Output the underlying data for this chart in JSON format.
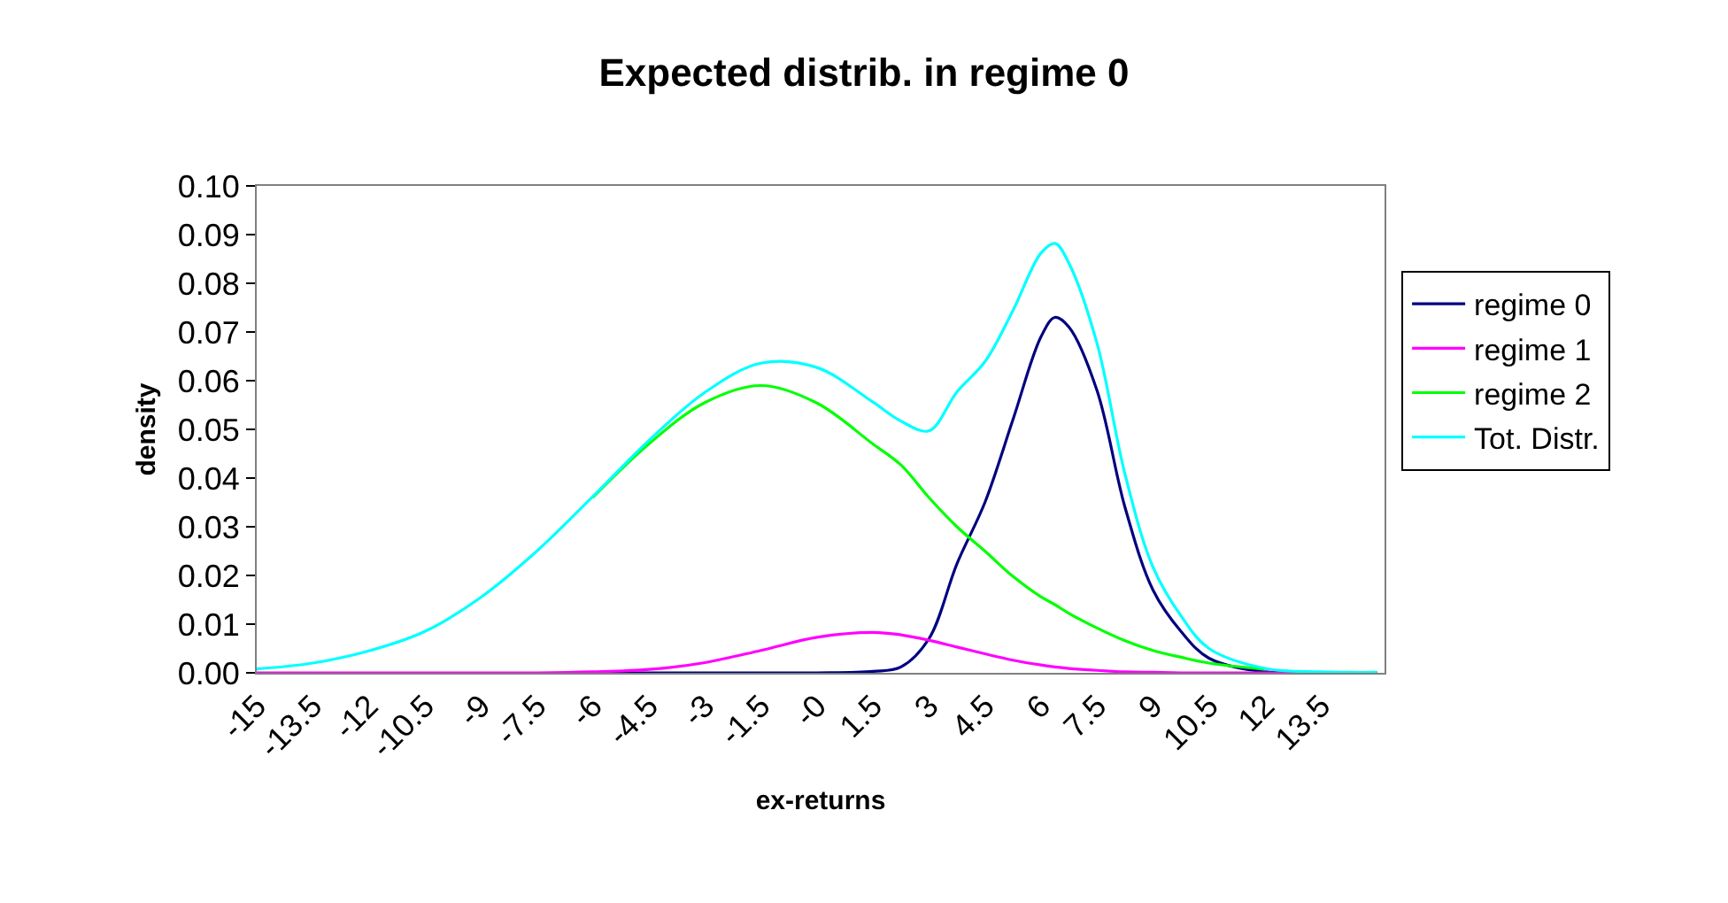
{
  "chart_data": {
    "type": "line",
    "title": "Expected distrib. in regime 0",
    "xlabel": "ex-returns",
    "ylabel": "density",
    "x": [
      -15,
      -13.5,
      -12,
      -10.5,
      -9,
      -7.5,
      -6,
      -4.5,
      -3,
      -1.5,
      0,
      1.5,
      2.25,
      3,
      3.75,
      4.5,
      5.25,
      6,
      6.375,
      6.75,
      7.5,
      8.25,
      9,
      9.75,
      10.5,
      12,
      13.5,
      15
    ],
    "series": [
      {
        "name": "regime 0",
        "color": "#000080",
        "values": [
          null,
          null,
          null,
          null,
          null,
          null,
          0,
          0,
          0,
          0,
          0,
          0.0003,
          0.0012,
          0.007,
          0.0224,
          0.035,
          0.052,
          0.069,
          0.073,
          0.071,
          0.058,
          0.034,
          0.017,
          0.0085,
          0.003,
          0.0002,
          0,
          0
        ]
      },
      {
        "name": "regime 1",
        "color": "#ff00ff",
        "values": [
          0,
          0,
          0,
          0,
          0,
          0,
          0.0002,
          0.0007,
          0.0021,
          0.0046,
          0.0073,
          0.0083,
          0.0078,
          0.0067,
          0.0053,
          0.0039,
          0.0026,
          0.0016,
          0.0012,
          0.0009,
          0.0005,
          0.0002,
          0.0001,
          0,
          0,
          0,
          0,
          0
        ]
      },
      {
        "name": "regime 2",
        "color": "#00ff00",
        "values": [
          null,
          null,
          null,
          null,
          null,
          null,
          0.036,
          0.047,
          0.0555,
          0.059,
          0.0554,
          0.047,
          0.0427,
          0.036,
          0.03,
          0.025,
          0.0198,
          0.0156,
          0.014,
          0.0122,
          0.0092,
          0.0066,
          0.0046,
          0.0032,
          0.002,
          0.0007,
          null,
          null
        ]
      },
      {
        "name": "Tot. Distr.",
        "color": "#00ffff",
        "values": [
          0.0008,
          0.002,
          0.0045,
          0.0085,
          0.0155,
          0.025,
          0.0362,
          0.0477,
          0.0576,
          0.0636,
          0.0627,
          0.0556,
          0.0517,
          0.0497,
          0.0577,
          0.0639,
          0.0744,
          0.0862,
          0.0882,
          0.0841,
          0.0677,
          0.0408,
          0.0217,
          0.0117,
          0.005,
          0.0009,
          0.0002,
          0.0001
        ]
      }
    ],
    "xlim": [
      -15,
      15.2
    ],
    "xticks": [
      -15,
      -13.5,
      -12,
      -10.5,
      -9,
      -7.5,
      -6,
      -4.5,
      -3,
      -1.5,
      {
        "value": 0,
        "label": "-0"
      },
      1.5,
      3,
      4.5,
      6,
      7.5,
      9,
      10.5,
      12,
      13.5
    ],
    "ylim": [
      0,
      0.1
    ],
    "yticks": [
      {
        "value": 0,
        "label": "0.00"
      },
      {
        "value": 0.01,
        "label": "0.01"
      },
      {
        "value": 0.02,
        "label": "0.02"
      },
      {
        "value": 0.03,
        "label": "0.03"
      },
      {
        "value": 0.04,
        "label": "0.04"
      },
      {
        "value": 0.05,
        "label": "0.05"
      },
      {
        "value": 0.06,
        "label": "0.06"
      },
      {
        "value": 0.07,
        "label": "0.07"
      },
      {
        "value": 0.08,
        "label": "0.08"
      },
      {
        "value": 0.09,
        "label": "0.09"
      },
      {
        "value": 0.1,
        "label": "0.10"
      }
    ],
    "legend": "right",
    "marker": "none",
    "line_style": "solid"
  }
}
